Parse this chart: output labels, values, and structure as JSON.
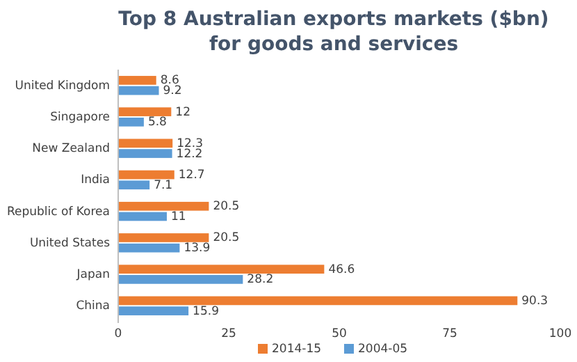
{
  "chart_data": {
    "type": "bar",
    "orientation": "horizontal",
    "title": "Top 8 Australian exports markets ($bn) for goods and services",
    "categories": [
      "United Kingdom",
      "Singapore",
      "New Zealand",
      "India",
      "Republic of Korea",
      "United States",
      "Japan",
      "China"
    ],
    "series": [
      {
        "name": "2014-15",
        "color": "#ed7d31",
        "values": [
          8.6,
          12,
          12.3,
          12.7,
          20.5,
          20.5,
          46.6,
          90.3
        ]
      },
      {
        "name": "2004-05",
        "color": "#5b9bd5",
        "values": [
          9.2,
          5.8,
          12.2,
          7.1,
          11,
          13.9,
          28.2,
          15.9
        ]
      }
    ],
    "xlim": [
      0,
      100
    ],
    "xticks": [
      0,
      25,
      50,
      75,
      100
    ],
    "data_labels": true,
    "legend": "bottom",
    "grid": false
  }
}
